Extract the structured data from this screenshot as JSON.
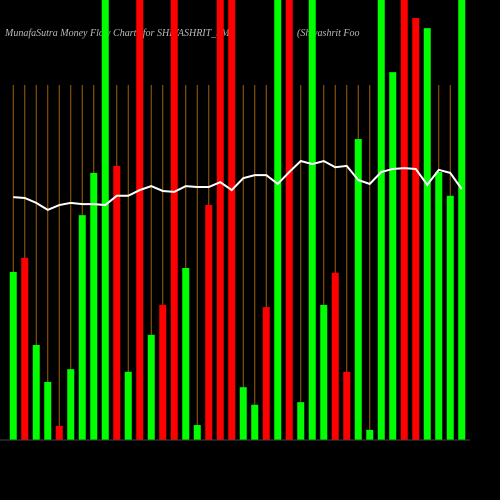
{
  "chart_data": {
    "type": "bar",
    "title": "MunafaSutra  Money Flow  Charts for SHIVASHRIT_SM",
    "subtitle": "(Shivashrit Foo",
    "categories": [
      null,
      null,
      null,
      null,
      null,
      null,
      null,
      null,
      null,
      null,
      null,
      null,
      null,
      null,
      null,
      null,
      null,
      null,
      null,
      null,
      null,
      null,
      null,
      null,
      null,
      null,
      null,
      null,
      null,
      null,
      null,
      null,
      null,
      null,
      null,
      null,
      null,
      null,
      null,
      null
    ],
    "values": [
      38.2,
      41.4,
      21.6,
      13.2,
      3.2,
      16.1,
      51.1,
      60.7,
      100,
      62.3,
      15.5,
      100,
      23.9,
      30.7,
      100,
      39.1,
      3.4,
      53.4,
      100,
      100,
      12.0,
      8.0,
      30.2,
      100,
      100,
      8.6,
      100,
      30.7,
      38.0,
      15.5,
      68.4,
      2.3,
      100,
      83.6,
      100,
      95.9,
      93.6,
      60.9,
      55.5,
      100
    ],
    "colors": [
      "#00ff00",
      "#ff0000",
      "#00ff00",
      "#00ff00",
      "#ff0000",
      "#00ff00",
      "#00ff00",
      "#00ff00",
      "#00ff00",
      "#ff0000",
      "#00ff00",
      "#ff0000",
      "#00ff00",
      "#ff0000",
      "#ff0000",
      "#00ff00",
      "#00ff00",
      "#ff0000",
      "#ff0000",
      "#ff0000",
      "#00ff00",
      "#00ff00",
      "#ff0000",
      "#00ff00",
      "#ff0000",
      "#00ff00",
      "#00ff00",
      "#00ff00",
      "#ff0000",
      "#ff0000",
      "#00ff00",
      "#00ff00",
      "#00ff00",
      "#00ff00",
      "#ff0000",
      "#ff0000",
      "#00ff00",
      "#00ff00",
      "#00ff00",
      "#00ff00"
    ],
    "line": {
      "color": "#ffffff",
      "values": [
        55.2,
        55.0,
        53.9,
        52.3,
        53.4,
        53.9,
        53.6,
        53.6,
        53.4,
        55.5,
        55.5,
        56.8,
        57.7,
        56.6,
        56.4,
        57.7,
        57.5,
        57.5,
        58.6,
        56.8,
        59.5,
        60.2,
        60.2,
        58.2,
        60.9,
        63.4,
        62.7,
        63.4,
        62.0,
        62.3,
        59.1,
        58.2,
        60.9,
        61.6,
        61.8,
        61.6,
        58.0,
        61.4,
        60.7,
        57.0
      ]
    },
    "ylim": [
      0,
      100
    ],
    "grid": true,
    "grid_color": "#a0600a"
  }
}
